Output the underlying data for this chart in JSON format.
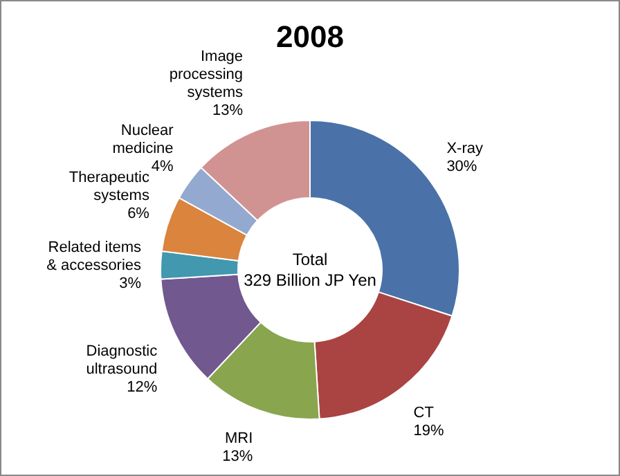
{
  "chart_data": {
    "type": "donut",
    "title": "2008",
    "categories": [
      "X-ray",
      "CT",
      "MRI",
      "Diagnostic ultrasound",
      "Related items & accessories",
      "Therapeutic systems",
      "Nuclear medicine",
      "Image processing systems"
    ],
    "values": [
      30,
      19,
      13,
      12,
      3,
      6,
      4,
      13
    ],
    "value_labels": [
      "30%",
      "19%",
      "13%",
      "12%",
      "3%",
      "6%",
      "4%",
      "13%"
    ],
    "colors": [
      "#4a72a8",
      "#a94442",
      "#89a54e",
      "#71588f",
      "#4198af",
      "#db843d",
      "#93a9cf",
      "#d19392"
    ],
    "annotations": [
      "Total",
      "329 Billion JP Yen"
    ]
  }
}
